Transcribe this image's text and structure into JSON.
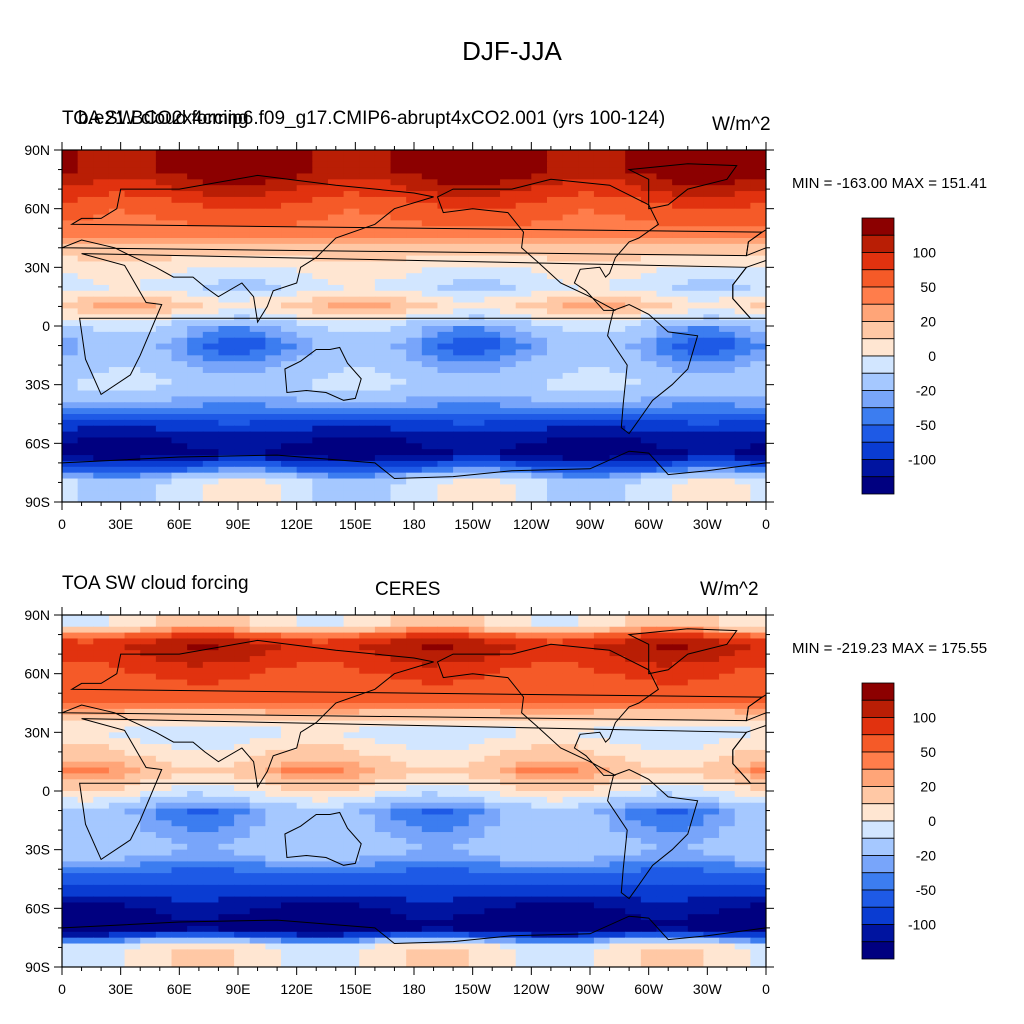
{
  "figure": {
    "title": "DJF-JJA"
  },
  "colorbar": {
    "colors": [
      "#000080",
      "#0014a0",
      "#0a3cd2",
      "#1e5ae6",
      "#3c7df0",
      "#78a5fa",
      "#a5c8ff",
      "#d2e6ff",
      "#ffe6d2",
      "#ffc8a5",
      "#ffa578",
      "#ff7d4b",
      "#f55a28",
      "#e1320f",
      "#b91e05",
      "#8c0000"
    ],
    "tick_labels": [
      "100",
      "50",
      "20",
      "0",
      "-20",
      "-50",
      "-100"
    ]
  },
  "axes": {
    "lat_labels": [
      "90N",
      "60N",
      "30N",
      "0",
      "30S",
      "60S",
      "90S"
    ],
    "lon_labels": [
      "0",
      "30E",
      "60E",
      "90E",
      "120E",
      "150E",
      "180",
      "150W",
      "120W",
      "90W",
      "60W",
      "30W",
      "0"
    ]
  },
  "panels": [
    {
      "left_title": "TOA SW cloud forcing",
      "center_title": "b.e21.BCO2x4cmip6.f09_g17.CMIP6-abrupt4xCO2.001 (yrs 100-124)",
      "units": "W/m^2",
      "min_max": "MIN = -163.00 MAX = 151.41"
    },
    {
      "left_title": "TOA SW cloud forcing",
      "center_title": "CERES",
      "units": "W/m^2",
      "min_max": "MIN = -219.23 MAX = 175.55"
    }
  ],
  "chart_data": [
    {
      "type": "heatmap",
      "title": "b.e21.BCO2x4cmip6.f09_g17.CMIP6-abrupt4xCO2.001 (yrs 100-124)",
      "variable": "TOA SW cloud forcing",
      "season": "DJF-JJA",
      "units": "W/m^2",
      "min": -163.0,
      "max": 151.41,
      "xlim": [
        0,
        360
      ],
      "ylim": [
        -90,
        90
      ],
      "contour_levels": [
        -140,
        -120,
        -100,
        -80,
        -60,
        -50,
        -40,
        -20,
        0,
        20,
        40,
        50,
        60,
        80,
        100,
        120,
        140
      ],
      "zonal_pattern": [
        {
          "lat": 80,
          "value": 130
        },
        {
          "lat": 60,
          "value": 70
        },
        {
          "lat": 45,
          "value": 50
        },
        {
          "lat": 30,
          "value": 5
        },
        {
          "lat": 20,
          "value": -15
        },
        {
          "lat": 10,
          "value": 30
        },
        {
          "lat": 0,
          "value": -30
        },
        {
          "lat": -10,
          "value": -50
        },
        {
          "lat": -30,
          "value": -20
        },
        {
          "lat": -45,
          "value": -60
        },
        {
          "lat": -55,
          "value": -110
        },
        {
          "lat": -65,
          "value": -130
        },
        {
          "lat": -80,
          "value": -10
        }
      ]
    },
    {
      "type": "heatmap",
      "title": "CERES",
      "variable": "TOA SW cloud forcing",
      "season": "DJF-JJA",
      "units": "W/m^2",
      "min": -219.23,
      "max": 175.55,
      "xlim": [
        0,
        360
      ],
      "ylim": [
        -90,
        90
      ],
      "contour_levels": [
        -140,
        -120,
        -100,
        -80,
        -60,
        -50,
        -40,
        -20,
        0,
        20,
        40,
        50,
        60,
        80,
        100,
        120,
        140
      ],
      "zonal_pattern": [
        {
          "lat": 85,
          "value": 15
        },
        {
          "lat": 75,
          "value": 110
        },
        {
          "lat": 60,
          "value": 80
        },
        {
          "lat": 45,
          "value": 60
        },
        {
          "lat": 30,
          "value": -10
        },
        {
          "lat": 10,
          "value": 40
        },
        {
          "lat": 0,
          "value": 5
        },
        {
          "lat": -10,
          "value": -45
        },
        {
          "lat": -30,
          "value": -30
        },
        {
          "lat": -45,
          "value": -70
        },
        {
          "lat": -60,
          "value": -120
        },
        {
          "lat": -70,
          "value": -140
        },
        {
          "lat": -80,
          "value": 10
        }
      ]
    }
  ]
}
